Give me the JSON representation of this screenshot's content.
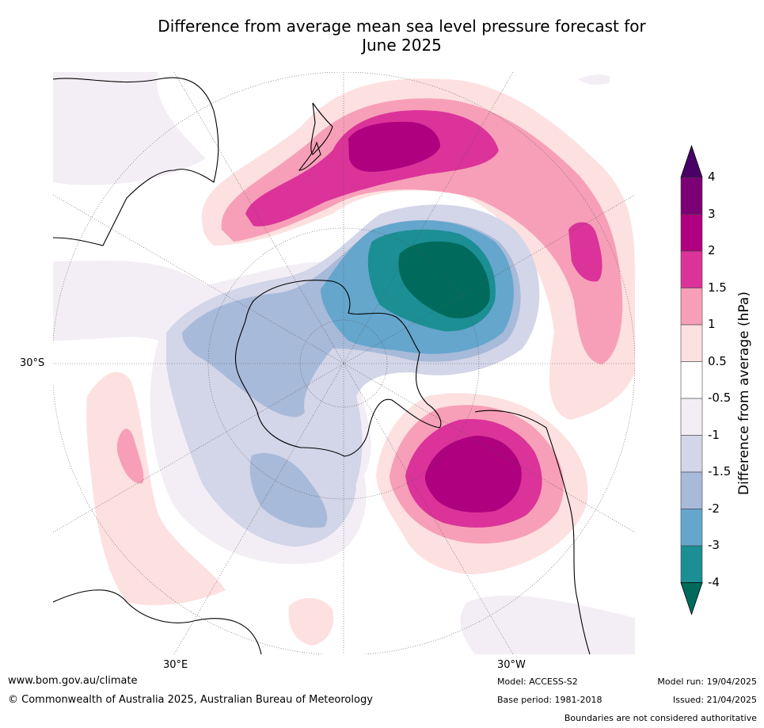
{
  "title_line1": "Difference from average mean sea level pressure forecast for",
  "title_line2": "June 2025",
  "lat_labels": {
    "lat_30s": "30°S"
  },
  "lon_labels": {
    "lon_30e": "30°E",
    "lon_30w": "30°W"
  },
  "colorbar": {
    "label": "Difference from average (hPa)",
    "ticks": [
      "4",
      "3",
      "2",
      "1.5",
      "1",
      "0.5",
      "-0.5",
      "-1",
      "-1.5",
      "-2",
      "-3",
      "-4"
    ],
    "colors": [
      "#4b0068",
      "#7c0075",
      "#ae007f",
      "#db3399",
      "#f79fb8",
      "#fde0e0",
      "#ffffff",
      "#f3eef5",
      "#d3d5e8",
      "#a8bad9",
      "#65a6cd",
      "#1b8f94",
      "#006b5c"
    ]
  },
  "footer": {
    "website": "www.bom.gov.au/climate",
    "copyright": "© Commonwealth of Australia 2025, Australian Bureau of Meteorology",
    "model": "Model: ACCESS-S2",
    "base_period": "Base period: 1981-2018",
    "model_run": "Model run: 19/04/2025",
    "issued": "Issued: 21/04/2025",
    "disclaimer": "Boundaries are not considered authoritative"
  }
}
